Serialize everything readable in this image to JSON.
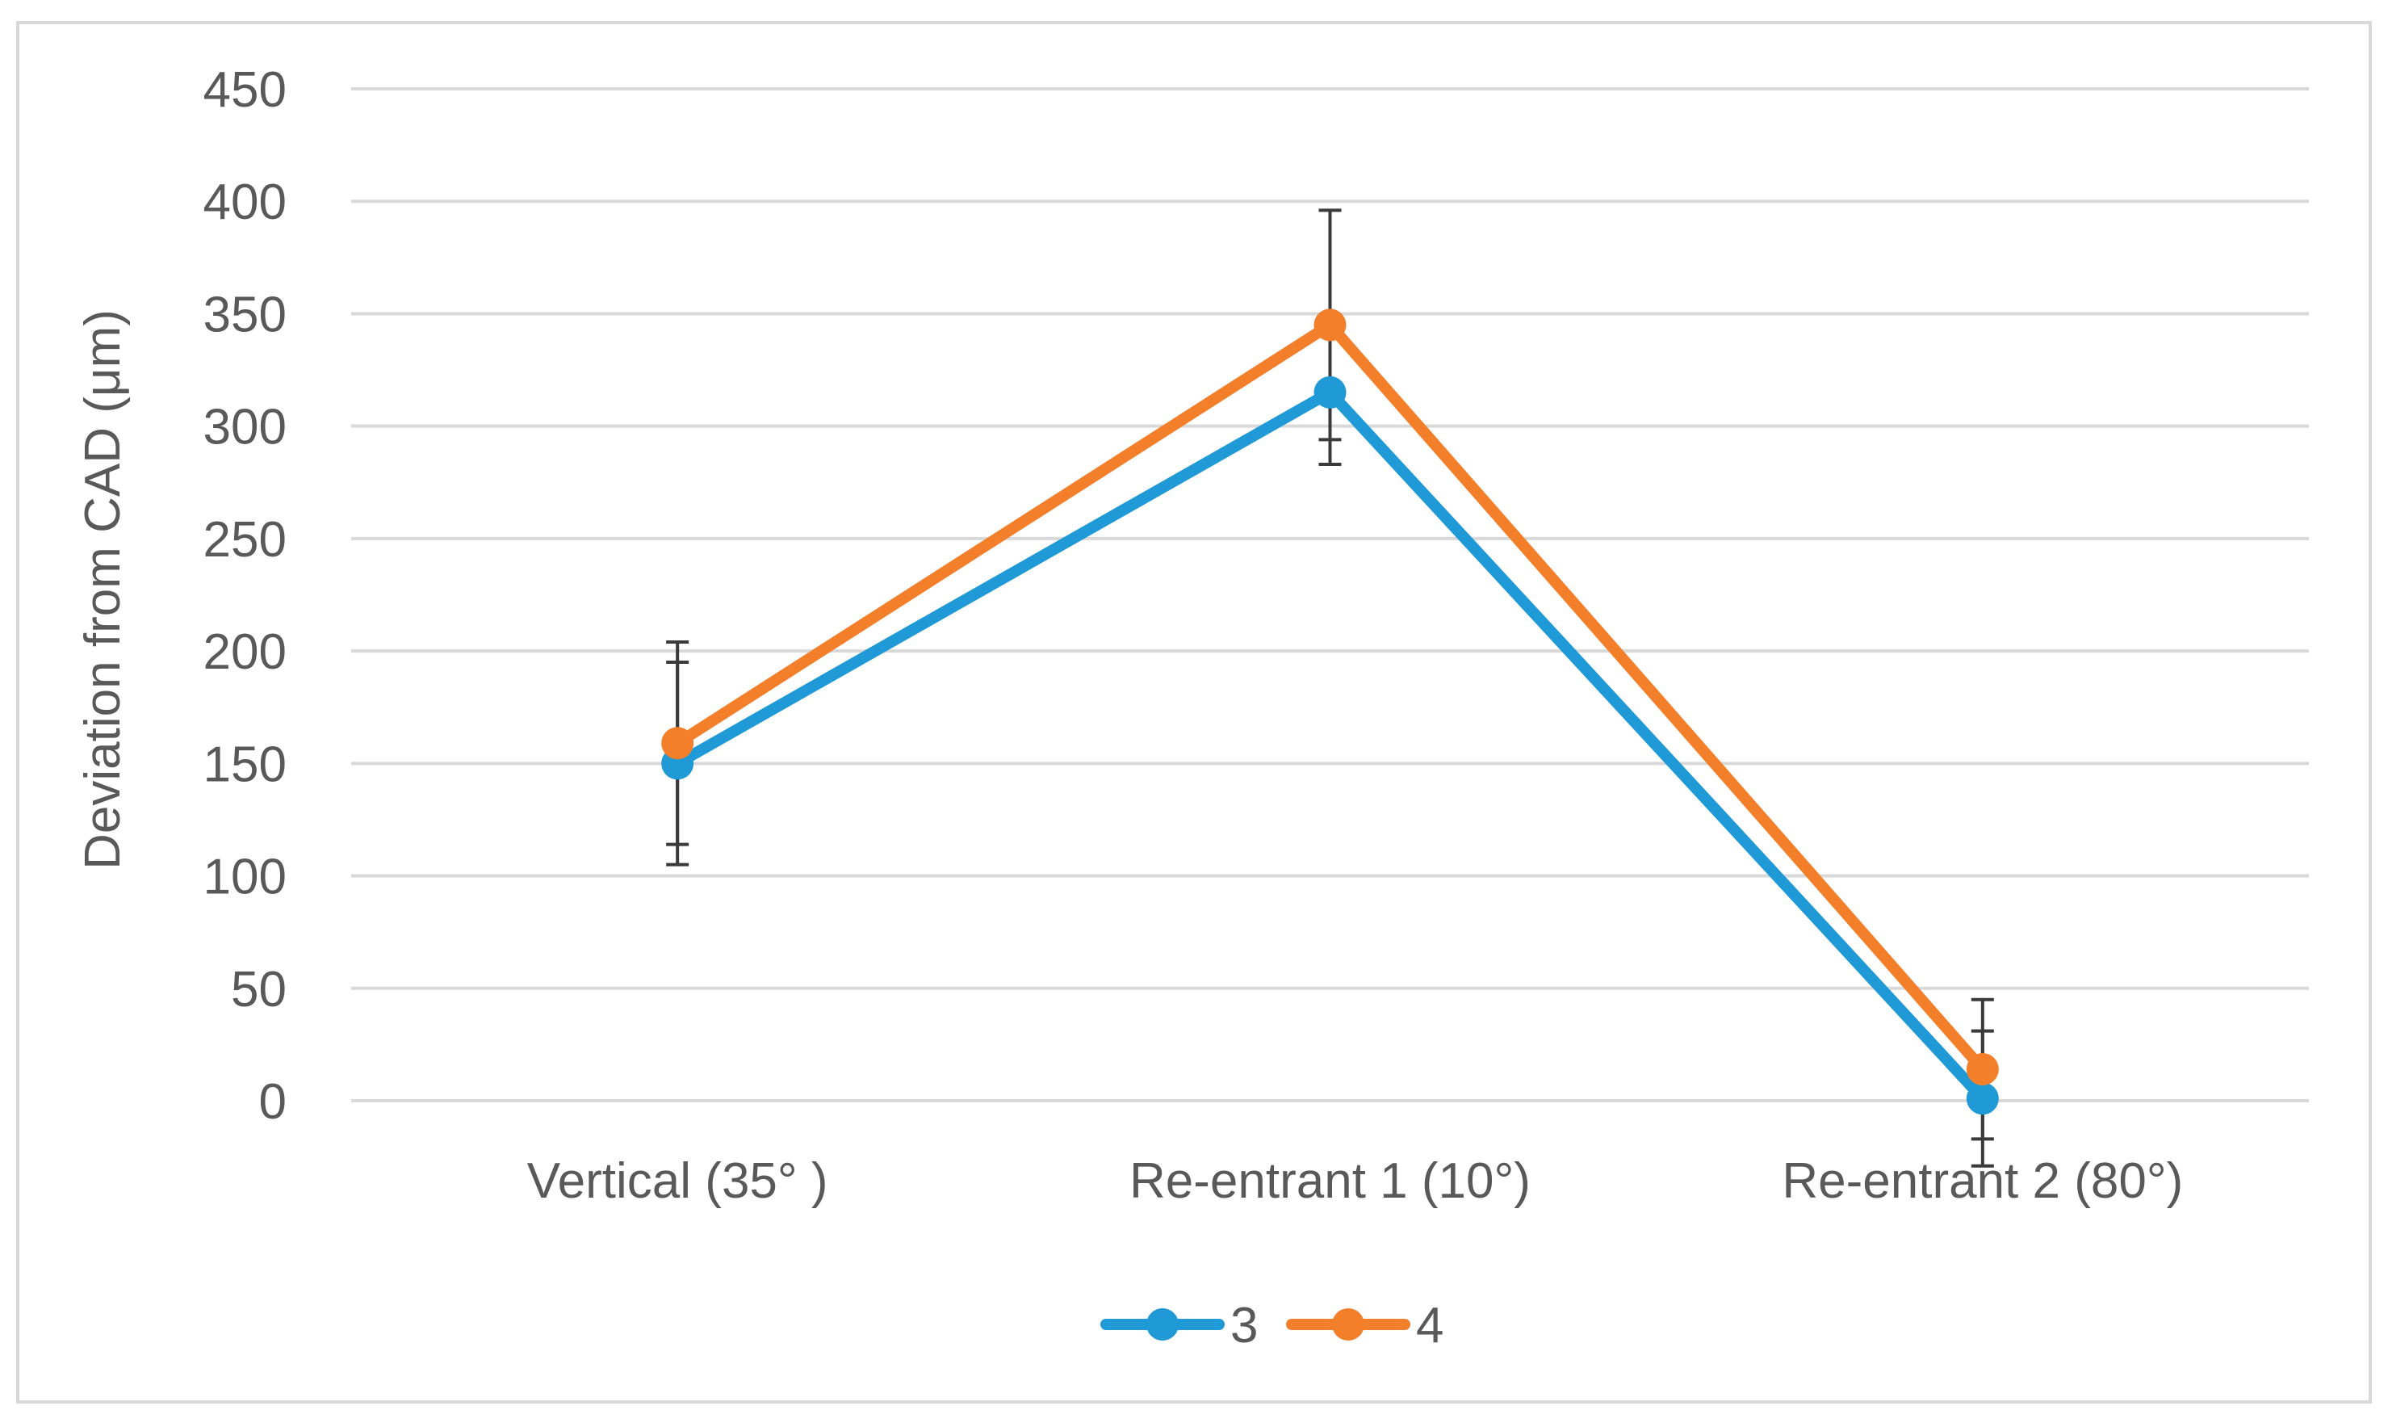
{
  "chart_data": {
    "type": "line",
    "title": "",
    "xlabel": "",
    "ylabel": "Deviation from CAD (μm)",
    "ylim": [
      0,
      450
    ],
    "yticks": [
      "0",
      "50",
      "100",
      "150",
      "200",
      "250",
      "300",
      "350",
      "400",
      "450"
    ],
    "categories": [
      "Vertical (35° )",
      "Re-entrant 1 (10°)",
      "Re-entrant 2 (80°)"
    ],
    "grid": true,
    "legend_position": "bottom",
    "series": [
      {
        "name": "3",
        "color": "#1f9ad6",
        "values": [
          150,
          315,
          1
        ],
        "error": [
          45,
          32,
          30
        ]
      },
      {
        "name": "4",
        "color": "#f47f2a",
        "values": [
          159,
          345,
          14
        ],
        "error": [
          45,
          51,
          31
        ]
      }
    ]
  }
}
